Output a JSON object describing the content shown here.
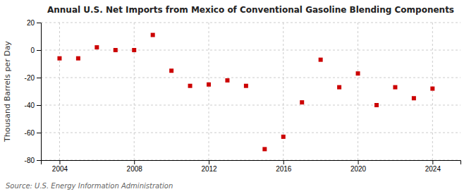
{
  "chart_data": {
    "type": "scatter",
    "title": "Annual U.S. Net Imports from Mexico of Conventional Gasoline Blending Components",
    "ylabel": "Thousand Barrels per Day",
    "source": "Source: U.S. Energy Information Administration",
    "x": [
      2004,
      2005,
      2006,
      2007,
      2008,
      2009,
      2010,
      2011,
      2012,
      2013,
      2014,
      2015,
      2016,
      2017,
      2018,
      2019,
      2020,
      2021,
      2022,
      2023,
      2024
    ],
    "values": [
      -6,
      -6,
      2,
      0,
      0,
      11,
      -15,
      -26,
      -25,
      -22,
      -26,
      -72,
      -63,
      -38,
      -7,
      -27,
      -17,
      -40,
      -27,
      -35,
      -28
    ],
    "color": "#cc0000",
    "marker": "square",
    "xlim": [
      2003,
      2025.5
    ],
    "ylim": [
      -80,
      20
    ],
    "xticks": [
      2004,
      2008,
      2012,
      2016,
      2020,
      2024
    ],
    "yticks": [
      -80,
      -60,
      -40,
      -20,
      0,
      20
    ],
    "grid": true
  }
}
